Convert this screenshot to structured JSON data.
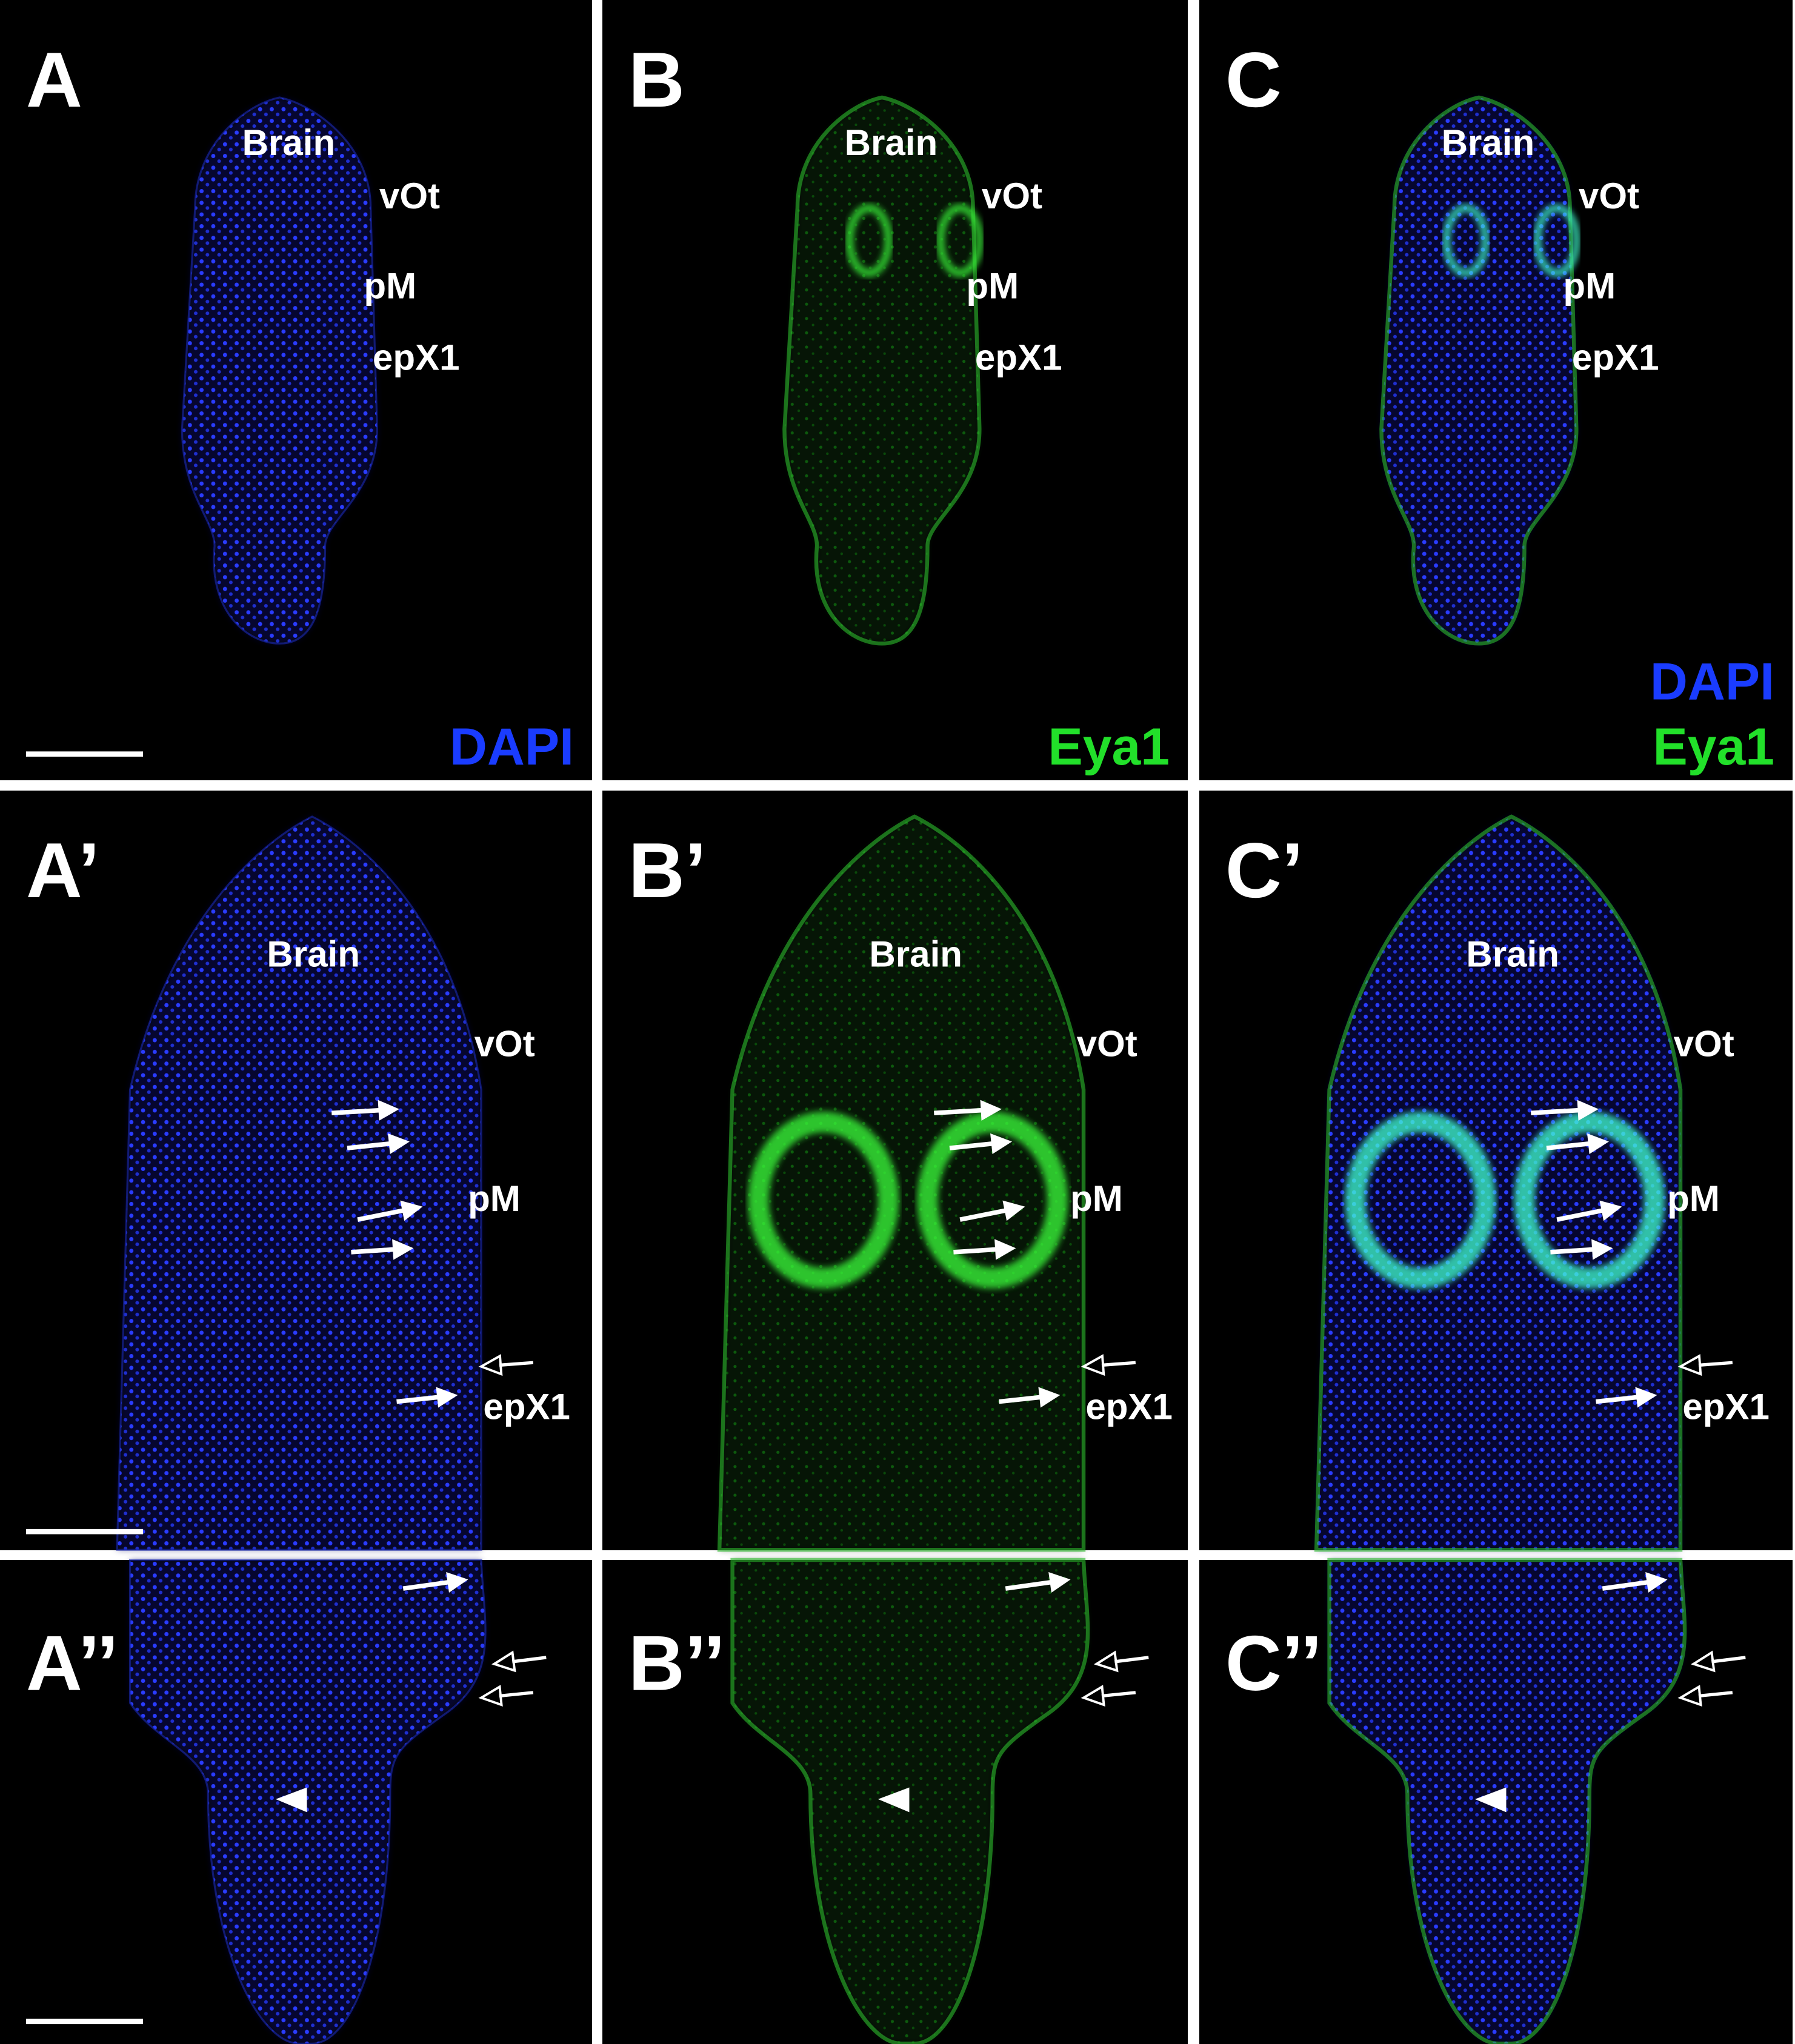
{
  "panels": [
    {
      "label": "A",
      "annotations": [
        "Brain",
        "vOt",
        "pM",
        "epX1"
      ],
      "channels": [
        "DAPI"
      ]
    },
    {
      "label": "B",
      "annotations": [
        "Brain",
        "vOt",
        "pM",
        "epX1"
      ],
      "channels": [
        "Eya1"
      ]
    },
    {
      "label": "C",
      "annotations": [
        "Brain",
        "vOt",
        "pM",
        "epX1"
      ],
      "channels": [
        "DAPI",
        "Eya1"
      ]
    },
    {
      "label": "A’",
      "annotations": [
        "Brain",
        "vOt",
        "pM",
        "epX1"
      ]
    },
    {
      "label": "B’",
      "annotations": [
        "Brain",
        "vOt",
        "pM",
        "epX1"
      ]
    },
    {
      "label": "C’",
      "annotations": [
        "Brain",
        "vOt",
        "pM",
        "epX1"
      ]
    },
    {
      "label": "A’’"
    },
    {
      "label": "B’’"
    },
    {
      "label": "C’’"
    }
  ]
}
